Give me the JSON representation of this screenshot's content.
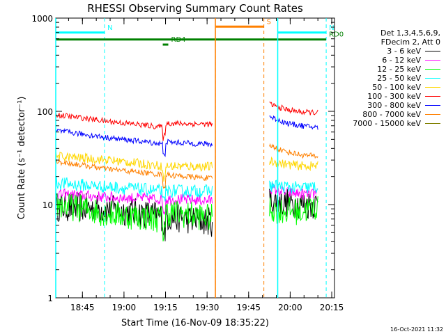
{
  "chart_data": {
    "type": "line",
    "title": "RHESSI Observing Summary Count Rates",
    "xlabel": "Start Time (16-Nov-09 18:35:22)",
    "ylabel": "Count Rate (s⁻¹ detector⁻¹)",
    "yscale": "log",
    "ylim": [
      1,
      1000
    ],
    "yticks": [
      "1",
      "10",
      "100",
      "1000"
    ],
    "xlim": [
      "18:35:22",
      "20:16:00"
    ],
    "xticks": [
      "18:45",
      "19:00",
      "19:15",
      "19:30",
      "19:45",
      "20:00",
      "20:15"
    ],
    "legend_header": [
      "Det 1,3,4,5,6,9,",
      "FDecim 2, Att 0"
    ],
    "series": [
      {
        "name": "3 - 6 keV",
        "color": "#000000",
        "start": [
          9.5,
          9.0,
          7.5,
          6.5
        ],
        "end": [
          11.0,
          10.5,
          10.0,
          10.0
        ],
        "jitter": 0.16,
        "bump": 1.0
      },
      {
        "name": "6 - 12 keV",
        "color": "#ff00ff",
        "start": [
          13.0,
          12.0,
          11.5,
          11.0
        ],
        "end": [
          15.0,
          13.5,
          13.0,
          13.0
        ],
        "jitter": 0.06,
        "bump": 1.0
      },
      {
        "name": "12 - 25 keV",
        "color": "#00ff00",
        "start": [
          10.0,
          8.0,
          7.0,
          6.0
        ],
        "end": [
          9.0,
          8.5,
          8.5,
          9.5
        ],
        "jitter": 0.15,
        "bump": 1.2
      },
      {
        "name": "25 - 50 keV",
        "color": "#00ffff",
        "start": [
          17.0,
          15.5,
          14.0,
          14.0
        ],
        "end": [
          16.0,
          15.5,
          15.0,
          15.5
        ],
        "jitter": 0.07,
        "bump": 1.0
      },
      {
        "name": "50 - 100 keV",
        "color": "#ffd700",
        "start": [
          33.0,
          30.0,
          26.0,
          25.5
        ],
        "end": [
          29.0,
          27.0,
          26.0,
          26.0
        ],
        "jitter": 0.05,
        "bump": 1.0
      },
      {
        "name": "100 - 300 keV",
        "color": "#ff0000",
        "start": [
          92.0,
          78.0,
          68.0,
          66.0
        ],
        "end": [
          120.0,
          105.0,
          98.0,
          97.0
        ],
        "jitter": 0.03,
        "bump": 1.1
      },
      {
        "name": "300 - 800 keV",
        "color": "#0000ff",
        "start": [
          62.0,
          52.0,
          45.0,
          42.0
        ],
        "end": [
          88.0,
          75.0,
          70.0,
          67.0
        ],
        "jitter": 0.03,
        "bump": 1.05
      },
      {
        "name": "800 - 7000 keV",
        "color": "#ff8000",
        "start": [
          29.0,
          24.0,
          21.0,
          19.0
        ],
        "end": [
          43.0,
          37.0,
          34.0,
          33.0
        ],
        "jitter": 0.03,
        "bump": 1.0
      },
      {
        "name": "7000 - 15000 keV",
        "color": "#808000",
        "start": [],
        "end": [],
        "jitter": 0,
        "bump": 1.0
      }
    ],
    "segments": {
      "seg1": [
        "18:35:22",
        "19:32:00"
      ],
      "seg2": [
        "19:52:30",
        "20:10:00"
      ],
      "attenuator_dip": "19:14:30"
    },
    "markers": [
      {
        "label": "N",
        "color": "#00ffff",
        "x_start": "18:35:22",
        "x_end": "18:53:00",
        "level": 700,
        "vlines": [
          "18:53:00"
        ]
      },
      {
        "label": "N",
        "color": "#00ffff",
        "x_start": "19:55:30",
        "x_end": "20:13:00",
        "level": 700,
        "vlines": [
          "19:55:30",
          "20:13:00"
        ]
      },
      {
        "label": "S",
        "color": "#ff8000",
        "x_start": "19:33:00",
        "x_end": "19:50:30",
        "level": 810,
        "vlines": [
          "19:33:00",
          "19:50:30"
        ]
      },
      {
        "label": "RD0",
        "color": "#008000",
        "x_start": "18:35:22",
        "x_end": "20:13:00",
        "level": 590,
        "vlines": []
      },
      {
        "label": "RD4",
        "color": "#008000",
        "x_start": "19:14:00",
        "x_end": "19:16:00",
        "level": 520,
        "vlines": []
      }
    ]
  },
  "footer": {
    "timestamp": "16-Oct-2021 11:32"
  }
}
